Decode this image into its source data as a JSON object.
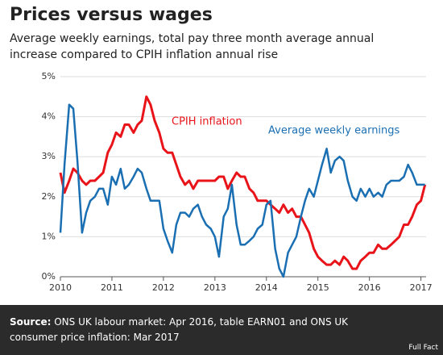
{
  "chart_data": {
    "type": "line",
    "title": "Prices versus wages",
    "subtitle": "Average weekly earnings, total pay three month average annual increase compared to CPIH inflation annual rise",
    "source_label": "Source:",
    "source_text": "ONS UK labour market: Apr 2016, table EARN01 and ONS UK consumer price inflation: Mar 2017",
    "logo": "Full Fact",
    "x": [
      2010,
      2010.08,
      2010.17,
      2010.25,
      2010.33,
      2010.42,
      2010.5,
      2010.58,
      2010.67,
      2010.75,
      2010.83,
      2010.92,
      2011,
      2011.08,
      2011.17,
      2011.25,
      2011.33,
      2011.42,
      2011.5,
      2011.58,
      2011.67,
      2011.75,
      2011.83,
      2011.92,
      2012,
      2012.08,
      2012.17,
      2012.25,
      2012.33,
      2012.42,
      2012.5,
      2012.58,
      2012.67,
      2012.75,
      2012.83,
      2012.92,
      2013,
      2013.08,
      2013.17,
      2013.25,
      2013.33,
      2013.42,
      2013.5,
      2013.58,
      2013.67,
      2013.75,
      2013.83,
      2013.92,
      2014,
      2014.08,
      2014.17,
      2014.25,
      2014.33,
      2014.42,
      2014.5,
      2014.58,
      2014.67,
      2014.75,
      2014.83,
      2014.92,
      2015,
      2015.08,
      2015.17,
      2015.25,
      2015.33,
      2015.42,
      2015.5,
      2015.58,
      2015.67,
      2015.75,
      2015.83,
      2015.92,
      2016,
      2016.08,
      2016.17,
      2016.25,
      2016.33,
      2016.42,
      2016.5,
      2016.58,
      2016.67,
      2016.75,
      2016.83,
      2016.92,
      2017,
      2017.08
    ],
    "series": [
      {
        "name": "CPIH inflation",
        "color": "#e8141a",
        "values": [
          2.6,
          2.1,
          2.4,
          2.7,
          2.6,
          2.4,
          2.3,
          2.4,
          2.4,
          2.5,
          2.6,
          3.1,
          3.3,
          3.6,
          3.5,
          3.8,
          3.8,
          3.6,
          3.8,
          3.9,
          4.5,
          4.3,
          3.9,
          3.6,
          3.2,
          3.1,
          3.1,
          2.8,
          2.5,
          2.3,
          2.4,
          2.2,
          2.4,
          2.4,
          2.4,
          2.4,
          2.4,
          2.5,
          2.5,
          2.2,
          2.4,
          2.6,
          2.5,
          2.5,
          2.2,
          2.1,
          1.9,
          1.9,
          1.9,
          1.8,
          1.7,
          1.6,
          1.8,
          1.6,
          1.7,
          1.5,
          1.5,
          1.3,
          1.1,
          0.7,
          0.5,
          0.4,
          0.3,
          0.3,
          0.4,
          0.3,
          0.5,
          0.4,
          0.2,
          0.2,
          0.4,
          0.5,
          0.6,
          0.6,
          0.8,
          0.7,
          0.7,
          0.8,
          0.9,
          1.0,
          1.3,
          1.3,
          1.5,
          1.8,
          1.9,
          2.3
        ]
      },
      {
        "name": "Average weekly earnings",
        "color": "#1a6fb3",
        "values": [
          1.1,
          2.8,
          4.3,
          4.2,
          2.9,
          1.1,
          1.6,
          1.9,
          2.0,
          2.2,
          2.2,
          1.8,
          2.5,
          2.3,
          2.7,
          2.2,
          2.3,
          2.5,
          2.7,
          2.6,
          2.2,
          1.9,
          1.9,
          1.9,
          1.2,
          0.9,
          0.6,
          1.3,
          1.6,
          1.6,
          1.5,
          1.7,
          1.8,
          1.5,
          1.3,
          1.2,
          1.0,
          0.5,
          1.5,
          1.7,
          2.3,
          1.3,
          0.8,
          0.8,
          0.9,
          1.0,
          1.2,
          1.3,
          1.8,
          1.9,
          0.7,
          0.2,
          0.0,
          0.6,
          0.8,
          1.0,
          1.5,
          1.9,
          2.2,
          2.0,
          2.4,
          2.8,
          3.2,
          2.6,
          2.9,
          3.0,
          2.9,
          2.4,
          2.0,
          1.9,
          2.2,
          2.0,
          2.2,
          2.0,
          2.1,
          2.0,
          2.3,
          2.4,
          2.4,
          2.4,
          2.5,
          2.8,
          2.6,
          2.3,
          2.3,
          2.3
        ]
      }
    ],
    "xlim": [
      2010,
      2017.1
    ],
    "xticks": [
      2010,
      2011,
      2012,
      2013,
      2014,
      2015,
      2016,
      2017
    ],
    "ylim": [
      0,
      5
    ],
    "yticks": [
      {
        "value": 0,
        "label": "0%"
      },
      {
        "value": 1,
        "label": "1%"
      },
      {
        "value": 2,
        "label": "2%"
      },
      {
        "value": 3,
        "label": "3%"
      },
      {
        "value": 4,
        "label": "4%"
      },
      {
        "value": 5,
        "label": "5%"
      }
    ],
    "grid": true
  }
}
